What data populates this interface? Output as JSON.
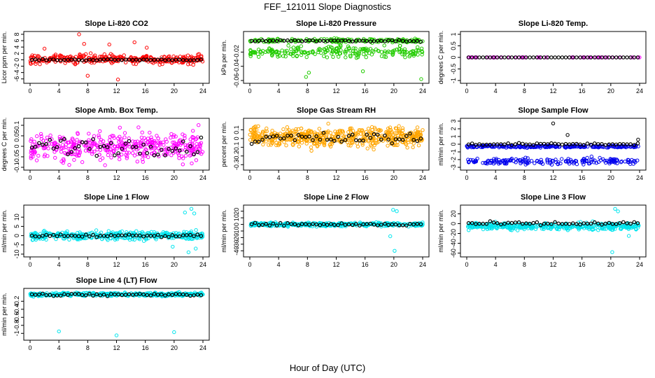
{
  "figure": {
    "title": "FEF_121011  Slope Diagnostics",
    "xlabel": "Hour of Day (UTC)"
  },
  "colors": {
    "red": "#ff0000",
    "green": "#22cc00",
    "magenta": "#ff00ff",
    "orange": "#ffa500",
    "blue": "#0000ee",
    "cyan": "#00e5ee",
    "black": "#000000"
  },
  "chart_data": [
    {
      "type": "scatter",
      "title": "Slope Li-820 CO2",
      "ylabel": "Licor ppm per min.",
      "xlim": [
        0,
        24
      ],
      "xticks": [
        0,
        4,
        8,
        12,
        16,
        20,
        24
      ],
      "ylim": [
        -6.5,
        8
      ],
      "yticks": [
        -6,
        -4,
        -2,
        0,
        2,
        4,
        6,
        8
      ],
      "series": [
        {
          "name": "all",
          "color": "red",
          "center": 0.2,
          "spread": 1.0,
          "n": 320,
          "outliers": [
            [
              6.8,
              8.0
            ],
            [
              12.2,
              -6.2
            ],
            [
              8.0,
              -5.0
            ],
            [
              7.5,
              5.0
            ],
            [
              14.5,
              5.5
            ],
            [
              2.0,
              3.5
            ],
            [
              11.0,
              4.8
            ],
            [
              16.2,
              3.8
            ]
          ]
        },
        {
          "name": "hourly",
          "color": "black",
          "center": 0.0,
          "spread": 0.15,
          "n": 48
        }
      ]
    },
    {
      "type": "scatter",
      "title": "Slope Li-820 Pressure",
      "ylabel": "kPa per min.",
      "xlim": [
        0,
        24
      ],
      "xticks": [
        0,
        4,
        8,
        12,
        16,
        20,
        24
      ],
      "ylim": [
        -0.06,
        0.005
      ],
      "yticks": [
        -0.06,
        -0.04,
        -0.02
      ],
      "series": [
        {
          "name": "all-upper",
          "color": "green",
          "center": -0.004,
          "spread": 0.002,
          "n": 160
        },
        {
          "name": "all-lower",
          "color": "green",
          "center": -0.02,
          "spread": 0.006,
          "n": 220,
          "outliers": [
            [
              8.2,
              -0.049
            ],
            [
              15.7,
              -0.047
            ],
            [
              23.8,
              -0.058
            ],
            [
              7.8,
              -0.055
            ]
          ]
        },
        {
          "name": "hourly",
          "color": "black",
          "center": -0.004,
          "spread": 0.0008,
          "n": 48
        }
      ]
    },
    {
      "type": "scatter",
      "title": "Slope Li-820 Temp.",
      "ylabel": "degrees C per min.",
      "xlim": [
        0,
        24
      ],
      "xticks": [
        0,
        4,
        8,
        12,
        16,
        20,
        24
      ],
      "ylim": [
        -1,
        1
      ],
      "yticks": [
        -1.0,
        -0.5,
        0.0,
        0.5,
        1.0
      ],
      "series": [
        {
          "name": "all",
          "color": "magenta",
          "center": 0.0,
          "spread": 0.0,
          "n": 48
        },
        {
          "name": "hourly",
          "color": "black",
          "center": 0.0,
          "spread": 0.0,
          "n": 48
        }
      ]
    },
    {
      "type": "scatter",
      "title": "Slope Amb. Box Temp.",
      "ylabel": "degrees C per min.",
      "xlim": [
        0,
        24
      ],
      "xticks": [
        0,
        4,
        8,
        12,
        16,
        20,
        24
      ],
      "ylim": [
        -0.1,
        0.12
      ],
      "yticks": [
        -0.1,
        -0.05,
        0.0,
        0.05,
        0.1
      ],
      "series": [
        {
          "name": "all",
          "color": "magenta",
          "center": 0.0,
          "spread": 0.05,
          "n": 420
        },
        {
          "name": "hourly",
          "color": "black",
          "center": 0.0,
          "spread": 0.03,
          "n": 48
        }
      ]
    },
    {
      "type": "scatter",
      "title": "Slope Gas Stream RH",
      "ylabel": "percent per min.",
      "xlim": [
        0,
        24
      ],
      "xticks": [
        0,
        4,
        8,
        12,
        16,
        20,
        24
      ],
      "ylim": [
        -0.33,
        0.2
      ],
      "yticks": [
        -0.3,
        -0.2,
        -0.1,
        0.0,
        0.1
      ],
      "series": [
        {
          "name": "all",
          "color": "orange",
          "center": 0.02,
          "spread": 0.08,
          "n": 520
        },
        {
          "name": "hourly",
          "color": "black",
          "center": 0.0,
          "spread": 0.05,
          "n": 48
        }
      ]
    },
    {
      "type": "scatter",
      "title": "Slope Sample Flow",
      "ylabel": "ml/min per min.",
      "xlim": [
        0,
        24
      ],
      "xticks": [
        0,
        4,
        8,
        12,
        16,
        20,
        24
      ],
      "ylim": [
        -3,
        3
      ],
      "yticks": [
        -3,
        -2,
        -1,
        0,
        1,
        2,
        3
      ],
      "series": [
        {
          "name": "all-main",
          "color": "blue",
          "center": -0.3,
          "spread": 0.1,
          "n": 240
        },
        {
          "name": "all-lower",
          "color": "blue",
          "center": -2.2,
          "spread": 0.3,
          "n": 180
        },
        {
          "name": "hourly",
          "color": "black",
          "center": 0.0,
          "spread": 0.1,
          "n": 48,
          "outliers": [
            [
              12.0,
              2.7
            ],
            [
              14.0,
              1.2
            ],
            [
              23.8,
              0.6
            ]
          ]
        }
      ]
    },
    {
      "type": "scatter",
      "title": "Slope Line 1 Flow",
      "ylabel": "ml/min per min.",
      "xlim": [
        0,
        24
      ],
      "xticks": [
        0,
        4,
        8,
        12,
        16,
        20,
        24
      ],
      "ylim": [
        -10,
        15
      ],
      "yticks": [
        -10,
        -5,
        0,
        5,
        10
      ],
      "series": [
        {
          "name": "all",
          "color": "cyan",
          "center": 0.0,
          "spread": 1.5,
          "n": 380,
          "outliers": [
            [
              22.4,
              14.5
            ],
            [
              22.8,
              12.0
            ],
            [
              21.5,
              12.5
            ],
            [
              22.0,
              -9.0
            ],
            [
              23.0,
              -7.0
            ],
            [
              19.8,
              -6.0
            ]
          ]
        },
        {
          "name": "hourly",
          "color": "black",
          "center": 0.0,
          "spread": 0.5,
          "n": 48
        }
      ]
    },
    {
      "type": "scatter",
      "title": "Slope Line 2 Flow",
      "ylabel": "ml/min per min.",
      "xlim": [
        0,
        24
      ],
      "xticks": [
        0,
        4,
        8,
        12,
        16,
        20,
        24
      ],
      "ylim": [
        -45,
        25
      ],
      "yticks": [
        -40,
        -30,
        -20,
        -10,
        0,
        10,
        20
      ],
      "series": [
        {
          "name": "all",
          "color": "cyan",
          "center": 0.0,
          "spread": 2.0,
          "n": 380,
          "outliers": [
            [
              19.9,
              22.0
            ],
            [
              20.4,
              20.0
            ],
            [
              20.1,
              -40.0
            ],
            [
              19.5,
              -18.0
            ]
          ]
        },
        {
          "name": "hourly",
          "color": "black",
          "center": 0.0,
          "spread": 1.5,
          "n": 48
        }
      ]
    },
    {
      "type": "scatter",
      "title": "Slope Line 3 Flow",
      "ylabel": "ml/min per min.",
      "xlim": [
        0,
        24
      ],
      "xticks": [
        0,
        4,
        8,
        12,
        16,
        20,
        24
      ],
      "ylim": [
        -62,
        32
      ],
      "yticks": [
        -60,
        -40,
        -20,
        0,
        20
      ],
      "series": [
        {
          "name": "all",
          "color": "cyan",
          "center": -5.0,
          "spread": 5.0,
          "n": 400,
          "outliers": [
            [
              20.6,
              30.0
            ],
            [
              20.2,
              -58.0
            ],
            [
              21.0,
              25.0
            ],
            [
              22.5,
              -25.0
            ]
          ]
        },
        {
          "name": "hourly",
          "color": "black",
          "center": 0.0,
          "spread": 2.5,
          "n": 48
        }
      ]
    },
    {
      "type": "scatter",
      "title": "Slope Line 4 (LT) Flow",
      "ylabel": "ml/min per min.",
      "xlim": [
        0,
        24
      ],
      "xticks": [
        0,
        4,
        8,
        12,
        16,
        20,
        24
      ],
      "ylim": [
        -1.1,
        0.05
      ],
      "yticks": [
        -1.0,
        -0.8,
        -0.6,
        -0.4,
        -0.2
      ],
      "series": [
        {
          "name": "all",
          "color": "cyan",
          "center": -0.03,
          "spread": 0.03,
          "n": 420,
          "outliers": [
            [
              4.0,
              -0.95
            ],
            [
              12.0,
              -1.05
            ],
            [
              20.0,
              -0.97
            ]
          ]
        },
        {
          "name": "hourly",
          "color": "black",
          "center": -0.04,
          "spread": 0.025,
          "n": 48
        }
      ]
    }
  ]
}
